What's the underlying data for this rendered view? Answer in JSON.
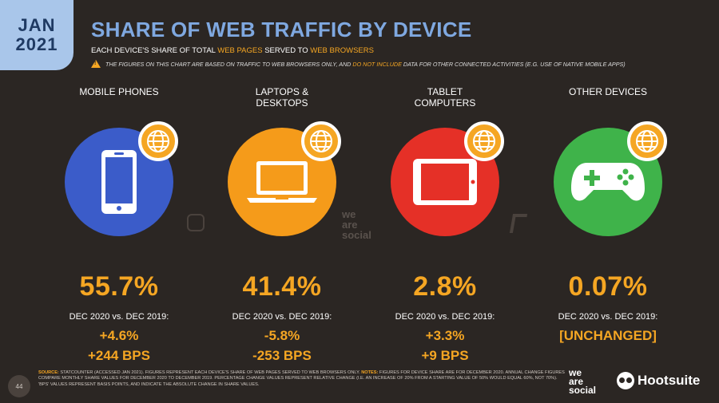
{
  "badge": {
    "month": "JAN",
    "year": "2021"
  },
  "title": "SHARE OF WEB TRAFFIC BY DEVICE",
  "subtitle": {
    "part1": "EACH DEVICE'S SHARE OF TOTAL ",
    "hl1": "WEB PAGES",
    "part2": " SERVED TO ",
    "hl2": "WEB BROWSERS"
  },
  "note": {
    "part1": "THE FIGURES ON THIS CHART ARE BASED ON TRAFFIC TO WEB BROWSERS ONLY, AND ",
    "hl": "DO NOT INCLUDE",
    "part2": " DATA FOR OTHER CONNECTED ACTIVITIES (E.G. USE OF NATIVE MOBILE APPS)"
  },
  "comparison_label": "DEC 2020 vs. DEC 2019:",
  "devices": [
    {
      "label": "MOBILE PHONES",
      "share": "55.7%",
      "change": "+4.6%",
      "bps": "+244 BPS",
      "color": "#3b5cc9",
      "icon": "mobile-phone-icon"
    },
    {
      "label": "LAPTOPS & DESKTOPS",
      "share": "41.4%",
      "change": "-5.8%",
      "bps": "-253 BPS",
      "color": "#f59b1a",
      "icon": "laptop-icon"
    },
    {
      "label": "TABLET COMPUTERS",
      "share": "2.8%",
      "change": "+3.3%",
      "bps": "+9 BPS",
      "color": "#e53027",
      "icon": "tablet-icon"
    },
    {
      "label": "OTHER DEVICES",
      "share": "0.07%",
      "change": "[UNCHANGED]",
      "bps": "",
      "color": "#3fb34a",
      "icon": "gamepad-icon"
    }
  ],
  "page_number": "44",
  "source": {
    "label": "SOURCE:",
    "text": " STATCOUNTER (ACCESSED JAN 2021). FIGURES REPRESENT EACH DEVICE'S SHARE OF WEB PAGES SERVED TO WEB BROWSERS ONLY. ",
    "notes_label": "NOTES:",
    "notes": " FIGURES FOR DEVICE SHARE ARE FOR DECEMBER 2020. ANNUAL CHANGE FIGURES COMPARE MONTHLY SHARE VALUES FOR DECEMBER 2020 TO DECEMBER 2019. PERCENTAGE CHANGE VALUES REPRESENT RELATIVE CHANGE (I.E. AN INCREASE OF 20% FROM A STARTING VALUE OF 50% WOULD EQUAL 60%, NOT 70%). 'BPS' VALUES REPRESENT BASIS POINTS, AND INDICATE THE ABSOLUTE CHANGE IN SHARE VALUES."
  },
  "brand_was": [
    "we",
    "are",
    "social"
  ],
  "brand_hootsuite": "Hootsuite",
  "watermark": [
    "we",
    "are",
    "social"
  ]
}
